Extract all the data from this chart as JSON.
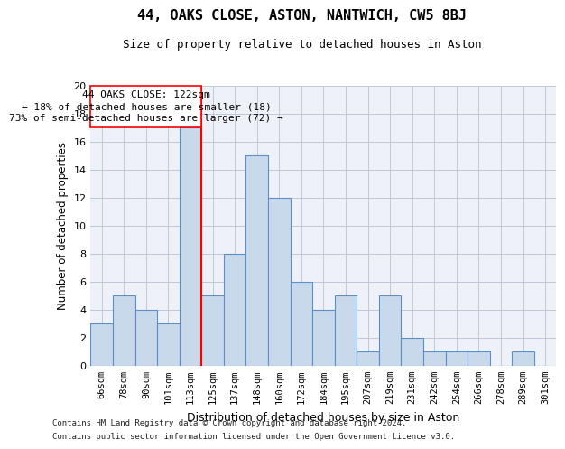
{
  "title": "44, OAKS CLOSE, ASTON, NANTWICH, CW5 8BJ",
  "subtitle": "Size of property relative to detached houses in Aston",
  "xlabel": "Distribution of detached houses by size in Aston",
  "ylabel": "Number of detached properties",
  "categories": [
    "66sqm",
    "78sqm",
    "90sqm",
    "101sqm",
    "113sqm",
    "125sqm",
    "137sqm",
    "148sqm",
    "160sqm",
    "172sqm",
    "184sqm",
    "195sqm",
    "207sqm",
    "219sqm",
    "231sqm",
    "242sqm",
    "254sqm",
    "266sqm",
    "278sqm",
    "289sqm",
    "301sqm"
  ],
  "values": [
    3,
    5,
    4,
    3,
    17,
    5,
    8,
    15,
    12,
    6,
    4,
    5,
    1,
    5,
    2,
    1,
    1,
    1,
    0,
    1,
    0
  ],
  "bar_color": "#c9d9ec",
  "bar_edge_color": "#5b8fc9",
  "grid_color": "#c0c8d8",
  "background_color": "#eef2f8",
  "property_line_x": 4.5,
  "annotation_title": "44 OAKS CLOSE: 122sqm",
  "annotation_line1": "← 18% of detached houses are smaller (18)",
  "annotation_line2": "73% of semi-detached houses are larger (72) →",
  "footnote1": "Contains HM Land Registry data © Crown copyright and database right 2024.",
  "footnote2": "Contains public sector information licensed under the Open Government Licence v3.0.",
  "ylim": [
    0,
    20
  ],
  "yticks": [
    0,
    2,
    4,
    6,
    8,
    10,
    12,
    14,
    16,
    18,
    20
  ]
}
